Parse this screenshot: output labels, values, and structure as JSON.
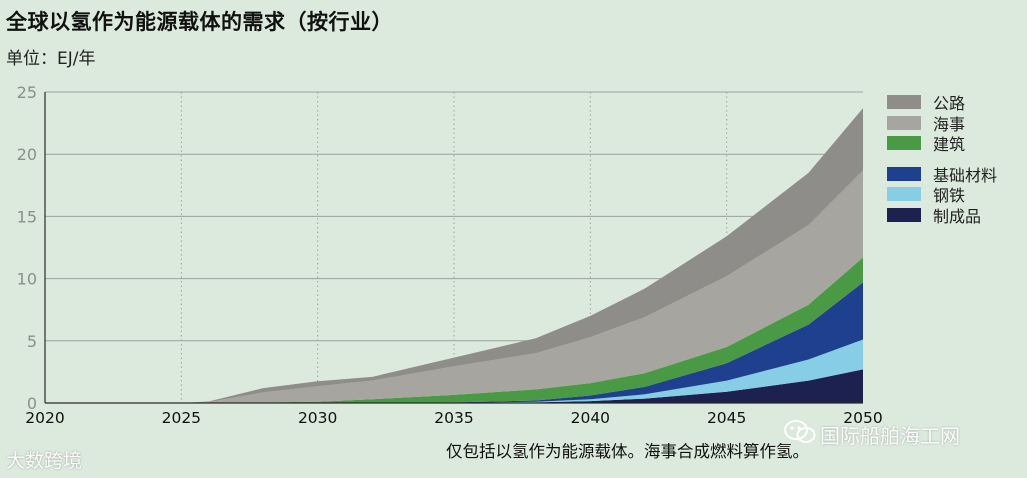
{
  "title": "全球以氢作为能源载体的需求（按行业）",
  "unit_label": "单位：EJ/年",
  "footnote": "仅包括以氢作为能源载体。海事合成燃料算作氢。",
  "watermark_left": "大数跨境",
  "watermark_right": "国际船舶海工网",
  "colors": {
    "background": "#dce9dd",
    "grid": "#9aa39a",
    "axis": "#2b2b2b",
    "tick_label": "#8a8f8a"
  },
  "chart_data": {
    "type": "area",
    "stacked": true,
    "x": [
      2020,
      2025,
      2026,
      2028,
      2030,
      2032,
      2035,
      2038,
      2040,
      2042,
      2045,
      2048,
      2050
    ],
    "xlim": [
      2020,
      2050
    ],
    "ylim": [
      0,
      25
    ],
    "x_ticks": [
      2020,
      2025,
      2030,
      2035,
      2040,
      2045,
      2050
    ],
    "y_ticks": [
      0,
      5,
      10,
      15,
      20,
      25
    ],
    "grid": true,
    "legend_position": "right",
    "series": [
      {
        "name": "制成品",
        "color": "#1c2150",
        "values": [
          0,
          0,
          0,
          0,
          0,
          0,
          0,
          0.05,
          0.15,
          0.35,
          0.9,
          1.8,
          2.7
        ]
      },
      {
        "name": "钢铁",
        "color": "#86cde5",
        "values": [
          0,
          0,
          0,
          0,
          0,
          0,
          0,
          0.05,
          0.15,
          0.35,
          0.9,
          1.7,
          2.4
        ]
      },
      {
        "name": "基础材料",
        "color": "#1f3f8f",
        "values": [
          0,
          0,
          0,
          0,
          0,
          0,
          0.05,
          0.1,
          0.3,
          0.6,
          1.4,
          2.8,
          4.6
        ]
      },
      {
        "name": "建筑",
        "color": "#4a9a45",
        "values": [
          0,
          0,
          0.02,
          0.05,
          0.1,
          0.3,
          0.6,
          0.9,
          1.0,
          1.1,
          1.3,
          1.6,
          2.0
        ]
      },
      {
        "name": "海事",
        "color": "#a7a5a0",
        "values": [
          0,
          0,
          0.05,
          0.8,
          1.25,
          1.5,
          2.3,
          2.9,
          3.7,
          4.5,
          5.7,
          6.4,
          7.0
        ]
      },
      {
        "name": "公路",
        "color": "#8f8d89",
        "values": [
          0,
          0,
          0.05,
          0.35,
          0.4,
          0.3,
          0.7,
          1.2,
          1.7,
          2.3,
          3.2,
          4.2,
          5.0
        ]
      }
    ],
    "legend_order": [
      "公路",
      "海事",
      "建筑",
      "基础材料",
      "钢铁",
      "制成品"
    ]
  }
}
